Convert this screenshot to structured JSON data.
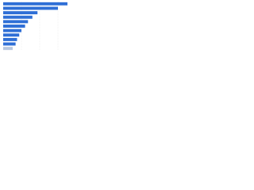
{
  "chart_data": {
    "type": "bar",
    "orientation": "horizontal",
    "categories": [
      null,
      null,
      null,
      null,
      null,
      null,
      null,
      null,
      null,
      null,
      null
    ],
    "values": [
      88,
      75,
      47,
      40,
      34,
      30,
      25,
      22,
      19,
      17,
      13
    ],
    "colors": [
      "#2f6fd6",
      "#2f6fd6",
      "#2f6fd6",
      "#2f6fd6",
      "#2f6fd6",
      "#2f6fd6",
      "#2f6fd6",
      "#2f6fd6",
      "#2f6fd6",
      "#2f6fd6",
      "#b8c7e0"
    ],
    "xlim": [
      0,
      100
    ],
    "grid": true
  }
}
